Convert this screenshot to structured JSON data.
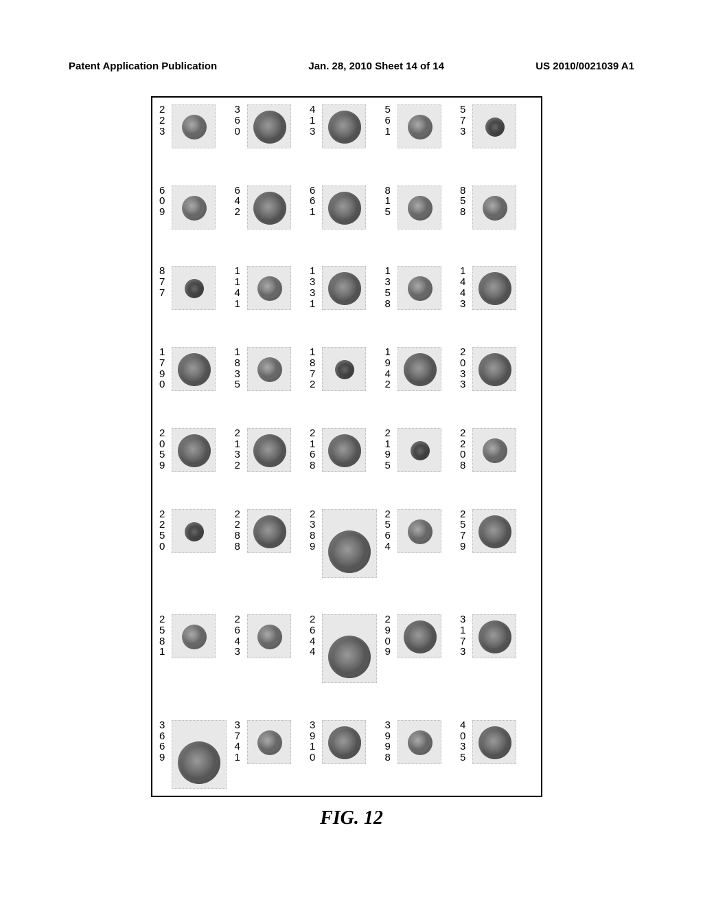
{
  "header": {
    "left": "Patent Application Publication",
    "center": "Jan. 28, 2010  Sheet 14 of 14",
    "right": "US 2010/0021039 A1"
  },
  "caption": "FIG. 12",
  "grid": {
    "rows": [
      {
        "cells": [
          {
            "id": "223",
            "blob": "b1"
          },
          {
            "id": "360",
            "blob": "b2"
          },
          {
            "id": "413",
            "blob": "b2"
          },
          {
            "id": "561",
            "blob": "b1"
          },
          {
            "id": "573",
            "blob": "b3"
          }
        ]
      },
      {
        "cells": [
          {
            "id": "609",
            "blob": "b1"
          },
          {
            "id": "642",
            "blob": "b2"
          },
          {
            "id": "661",
            "blob": "b2"
          },
          {
            "id": "815",
            "blob": "b1"
          },
          {
            "id": "858",
            "blob": "b1"
          }
        ]
      },
      {
        "cells": [
          {
            "id": "877",
            "blob": "b3"
          },
          {
            "id": "1141",
            "blob": "b1"
          },
          {
            "id": "1331",
            "blob": "b2"
          },
          {
            "id": "1358",
            "blob": "b1"
          },
          {
            "id": "1443",
            "blob": "b2"
          }
        ]
      },
      {
        "cells": [
          {
            "id": "1790",
            "blob": "b2"
          },
          {
            "id": "1835",
            "blob": "b1"
          },
          {
            "id": "1872",
            "blob": "b3"
          },
          {
            "id": "1942",
            "blob": "b2"
          },
          {
            "id": "2033",
            "blob": "b2"
          }
        ]
      },
      {
        "cells": [
          {
            "id": "2059",
            "blob": "b2"
          },
          {
            "id": "2132",
            "blob": "b2"
          },
          {
            "id": "2168",
            "blob": "b2"
          },
          {
            "id": "2195",
            "blob": "b3"
          },
          {
            "id": "2208",
            "blob": "b1"
          }
        ]
      },
      {
        "cells": [
          {
            "id": "2250",
            "blob": "b3"
          },
          {
            "id": "2288",
            "blob": "b2"
          },
          {
            "id": "2389",
            "blob": "b2",
            "big": true
          },
          {
            "id": "2564",
            "blob": "b1"
          },
          {
            "id": "2579",
            "blob": "b2"
          }
        ]
      },
      {
        "cells": [
          {
            "id": "2581",
            "blob": "b1"
          },
          {
            "id": "2643",
            "blob": "b1"
          },
          {
            "id": "2644",
            "blob": "b2",
            "big": true
          },
          {
            "id": "2909",
            "blob": "b2"
          },
          {
            "id": "3173",
            "blob": "b2"
          }
        ]
      },
      {
        "cells": [
          {
            "id": "3669",
            "blob": "b2",
            "big": true
          },
          {
            "id": "3741",
            "blob": "b1"
          },
          {
            "id": "3910",
            "blob": "b2"
          },
          {
            "id": "3998",
            "blob": "b1"
          },
          {
            "id": "4035",
            "blob": "b2"
          }
        ]
      }
    ]
  }
}
